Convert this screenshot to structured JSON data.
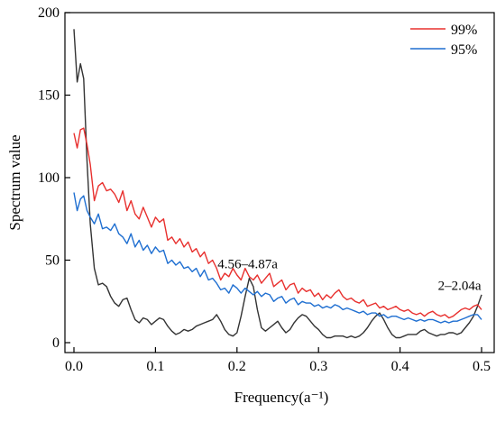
{
  "chart_data": {
    "type": "line",
    "xlabel": "Frequency(a⁻¹)",
    "ylabel": "Spectrum value",
    "xlim": [
      0,
      0.5
    ],
    "ylim": [
      0,
      200
    ],
    "x_ticks": [
      0.0,
      0.1,
      0.2,
      0.3,
      0.4,
      0.5
    ],
    "x_tick_labels": [
      "0.0",
      "0.1",
      "0.2",
      "0.3",
      "0.4",
      "0.5"
    ],
    "y_ticks": [
      0,
      50,
      100,
      150,
      200
    ],
    "y_tick_labels": [
      "0",
      "50",
      "100",
      "150",
      "200"
    ],
    "grid": false,
    "legend_position": "top-right",
    "annotations": [
      {
        "text": "4.56–4.87a",
        "x": 0.213,
        "y": 45
      },
      {
        "text": "2–2.04a",
        "x": 0.473,
        "y": 32
      }
    ],
    "series": [
      {
        "key": "spectrum",
        "color": "#333333",
        "x": [
          0.0,
          0.004,
          0.008,
          0.012,
          0.016,
          0.02,
          0.025,
          0.03,
          0.035,
          0.04,
          0.045,
          0.05,
          0.055,
          0.06,
          0.065,
          0.07,
          0.075,
          0.08,
          0.085,
          0.09,
          0.095,
          0.1,
          0.105,
          0.11,
          0.115,
          0.12,
          0.125,
          0.13,
          0.135,
          0.14,
          0.145,
          0.15,
          0.155,
          0.16,
          0.165,
          0.17,
          0.175,
          0.18,
          0.185,
          0.19,
          0.195,
          0.2,
          0.205,
          0.21,
          0.215,
          0.22,
          0.225,
          0.23,
          0.235,
          0.24,
          0.245,
          0.25,
          0.255,
          0.26,
          0.265,
          0.27,
          0.275,
          0.28,
          0.285,
          0.29,
          0.295,
          0.3,
          0.305,
          0.31,
          0.315,
          0.32,
          0.325,
          0.33,
          0.335,
          0.34,
          0.345,
          0.35,
          0.355,
          0.36,
          0.365,
          0.37,
          0.375,
          0.38,
          0.385,
          0.39,
          0.395,
          0.4,
          0.405,
          0.41,
          0.415,
          0.42,
          0.425,
          0.43,
          0.435,
          0.44,
          0.445,
          0.45,
          0.455,
          0.46,
          0.465,
          0.47,
          0.475,
          0.48,
          0.485,
          0.49,
          0.495,
          0.5
        ],
        "y": [
          190,
          158,
          169,
          160,
          110,
          72,
          45,
          35,
          36,
          34,
          28,
          24,
          22,
          26,
          27,
          20,
          14,
          12,
          15,
          14,
          11,
          13,
          15,
          14,
          10,
          7,
          5,
          6,
          8,
          7,
          8,
          10,
          11,
          12,
          13,
          14,
          17,
          13,
          8,
          5,
          4,
          6,
          16,
          28,
          39,
          34,
          20,
          9,
          7,
          9,
          11,
          13,
          9,
          6,
          8,
          12,
          15,
          17,
          16,
          13,
          10,
          8,
          5,
          3,
          3,
          4,
          4,
          4,
          3,
          4,
          3,
          4,
          6,
          9,
          13,
          16,
          18,
          14,
          9,
          5,
          3,
          3,
          4,
          5,
          5,
          5,
          7,
          8,
          6,
          5,
          4,
          5,
          5,
          6,
          6,
          5,
          6,
          9,
          12,
          16,
          22,
          29
        ]
      },
      {
        "name": "99%",
        "color": "#e8302e",
        "x": [
          0.0,
          0.004,
          0.008,
          0.012,
          0.016,
          0.02,
          0.025,
          0.03,
          0.035,
          0.04,
          0.045,
          0.05,
          0.055,
          0.06,
          0.065,
          0.07,
          0.075,
          0.08,
          0.085,
          0.09,
          0.095,
          0.1,
          0.105,
          0.11,
          0.115,
          0.12,
          0.125,
          0.13,
          0.135,
          0.14,
          0.145,
          0.15,
          0.155,
          0.16,
          0.165,
          0.17,
          0.175,
          0.18,
          0.185,
          0.19,
          0.195,
          0.2,
          0.205,
          0.21,
          0.215,
          0.22,
          0.225,
          0.23,
          0.235,
          0.24,
          0.245,
          0.25,
          0.255,
          0.26,
          0.265,
          0.27,
          0.275,
          0.28,
          0.285,
          0.29,
          0.295,
          0.3,
          0.305,
          0.31,
          0.315,
          0.32,
          0.325,
          0.33,
          0.335,
          0.34,
          0.345,
          0.35,
          0.355,
          0.36,
          0.365,
          0.37,
          0.375,
          0.38,
          0.385,
          0.39,
          0.395,
          0.4,
          0.405,
          0.41,
          0.415,
          0.42,
          0.425,
          0.43,
          0.435,
          0.44,
          0.445,
          0.45,
          0.455,
          0.46,
          0.465,
          0.47,
          0.475,
          0.48,
          0.485,
          0.49,
          0.495,
          0.5
        ],
        "y": [
          127,
          118,
          129,
          130,
          120,
          108,
          86,
          95,
          97,
          92,
          93,
          90,
          85,
          92,
          80,
          86,
          78,
          75,
          82,
          76,
          70,
          76,
          73,
          75,
          62,
          64,
          60,
          63,
          58,
          61,
          55,
          57,
          52,
          55,
          48,
          50,
          45,
          38,
          42,
          40,
          45,
          41,
          38,
          45,
          40,
          38,
          41,
          36,
          39,
          42,
          34,
          36,
          38,
          32,
          35,
          36,
          30,
          33,
          31,
          32,
          28,
          30,
          26,
          29,
          27,
          30,
          32,
          28,
          26,
          27,
          25,
          24,
          26,
          22,
          23,
          24,
          21,
          22,
          20,
          21,
          22,
          20,
          19,
          20,
          18,
          17,
          18,
          16,
          18,
          19,
          17,
          16,
          17,
          15,
          16,
          18,
          20,
          21,
          20,
          22,
          23,
          20
        ]
      },
      {
        "name": "95%",
        "color": "#1f6fd1",
        "x": [
          0.0,
          0.004,
          0.008,
          0.012,
          0.016,
          0.02,
          0.025,
          0.03,
          0.035,
          0.04,
          0.045,
          0.05,
          0.055,
          0.06,
          0.065,
          0.07,
          0.075,
          0.08,
          0.085,
          0.09,
          0.095,
          0.1,
          0.105,
          0.11,
          0.115,
          0.12,
          0.125,
          0.13,
          0.135,
          0.14,
          0.145,
          0.15,
          0.155,
          0.16,
          0.165,
          0.17,
          0.175,
          0.18,
          0.185,
          0.19,
          0.195,
          0.2,
          0.205,
          0.21,
          0.215,
          0.22,
          0.225,
          0.23,
          0.235,
          0.24,
          0.245,
          0.25,
          0.255,
          0.26,
          0.265,
          0.27,
          0.275,
          0.28,
          0.285,
          0.29,
          0.295,
          0.3,
          0.305,
          0.31,
          0.315,
          0.32,
          0.325,
          0.33,
          0.335,
          0.34,
          0.345,
          0.35,
          0.355,
          0.36,
          0.365,
          0.37,
          0.375,
          0.38,
          0.385,
          0.39,
          0.395,
          0.4,
          0.405,
          0.41,
          0.415,
          0.42,
          0.425,
          0.43,
          0.435,
          0.44,
          0.445,
          0.45,
          0.455,
          0.46,
          0.465,
          0.47,
          0.475,
          0.48,
          0.485,
          0.49,
          0.495,
          0.5
        ],
        "y": [
          91,
          80,
          87,
          89,
          80,
          76,
          72,
          78,
          69,
          70,
          68,
          72,
          66,
          64,
          60,
          66,
          58,
          62,
          56,
          59,
          54,
          58,
          55,
          56,
          48,
          50,
          47,
          49,
          45,
          46,
          43,
          45,
          40,
          44,
          38,
          39,
          36,
          32,
          33,
          30,
          35,
          33,
          30,
          33,
          31,
          29,
          31,
          28,
          30,
          29,
          25,
          27,
          28,
          24,
          26,
          27,
          23,
          25,
          24,
          24,
          22,
          23,
          21,
          22,
          21,
          23,
          22,
          20,
          21,
          20,
          19,
          18,
          19,
          17,
          18,
          18,
          16,
          17,
          15,
          16,
          16,
          15,
          14,
          15,
          14,
          13,
          14,
          13,
          14,
          14,
          13,
          12,
          13,
          12,
          13,
          13,
          14,
          15,
          16,
          17,
          17,
          14
        ]
      }
    ]
  }
}
